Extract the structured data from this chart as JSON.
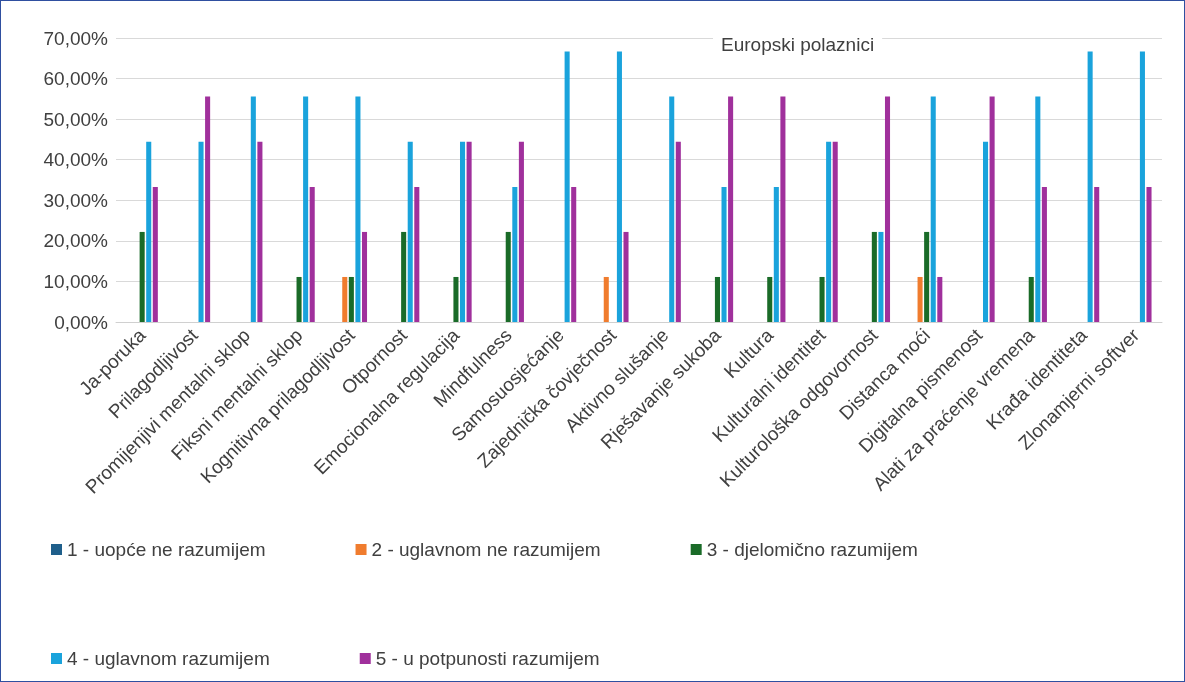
{
  "chart_data": {
    "type": "bar",
    "title": "Europski polaznici",
    "categories": [
      "Ja-poruka",
      "Prilagodljivost",
      "Promijenjivi mentalni sklop",
      "Fiksni mentalni sklop",
      "Kognitivna prilagodljivost",
      "Otpornost",
      "Emocionalna regulacija",
      "Mindfulness",
      "Samosuosjećanje",
      "Zajednička čovječnost",
      "Aktivno slušanje",
      "Rješavanje sukoba",
      "Kultura",
      "Kulturalni identitet",
      "Kulturološka odgovornost",
      "Distanca moći",
      "Digitalna pismenost",
      "Alati za praćenje vremena",
      "Krađa identiteta",
      "Zlonamjerni softver"
    ],
    "series": [
      {
        "name": "1 - uopće ne razumijem",
        "color": "#1f5f8b",
        "values": [
          0,
          0,
          0,
          0,
          0,
          0,
          0,
          0,
          0,
          0,
          0,
          0,
          0,
          0,
          0,
          0,
          0,
          0,
          0,
          0
        ]
      },
      {
        "name": "2 - uglavnom ne razumijem",
        "color": "#f07c2e",
        "values": [
          0,
          0,
          0,
          0,
          11.1,
          0,
          0,
          0,
          0,
          11.1,
          0,
          0,
          0,
          0,
          0,
          11.1,
          0,
          0,
          0,
          0
        ]
      },
      {
        "name": "3 - djelomično razumijem",
        "color": "#1a6b28",
        "values": [
          22.2,
          0,
          0,
          11.1,
          11.1,
          22.2,
          11.1,
          22.2,
          0,
          0,
          0,
          11.1,
          11.1,
          11.1,
          22.2,
          22.2,
          0,
          11.1,
          0,
          0
        ]
      },
      {
        "name": "4 - uglavnom razumijem",
        "color": "#1aa3dc",
        "values": [
          44.4,
          44.4,
          55.6,
          55.6,
          55.6,
          44.4,
          44.4,
          33.3,
          66.7,
          66.7,
          55.6,
          33.3,
          33.3,
          44.4,
          22.2,
          55.6,
          44.4,
          55.6,
          66.7,
          66.7
        ]
      },
      {
        "name": "5 - u potpunosti razumijem",
        "color": "#a0309c",
        "values": [
          33.3,
          55.6,
          44.4,
          33.3,
          22.2,
          33.3,
          44.4,
          44.4,
          33.3,
          22.2,
          44.4,
          55.6,
          55.6,
          44.4,
          55.6,
          11.1,
          55.6,
          33.3,
          33.3,
          33.3
        ]
      }
    ],
    "ylim": [
      0,
      70
    ],
    "yticks": [
      {
        "value": 0,
        "label": "0,00%"
      },
      {
        "value": 10,
        "label": "10,00%"
      },
      {
        "value": 20,
        "label": "20,00%"
      },
      {
        "value": 30,
        "label": "30,00%"
      },
      {
        "value": 40,
        "label": "40,00%"
      },
      {
        "value": 50,
        "label": "50,00%"
      },
      {
        "value": 60,
        "label": "60,00%"
      },
      {
        "value": 70,
        "label": "70,00%"
      }
    ],
    "grid": "y",
    "legend": "bottom"
  }
}
